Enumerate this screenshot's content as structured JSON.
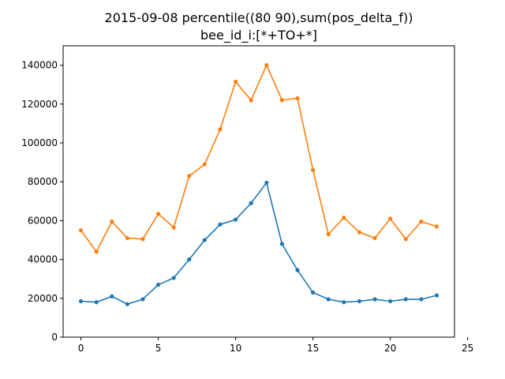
{
  "chart_data": {
    "type": "line",
    "title_lines": [
      "2015-09-08 percentile((80 90),sum(pos_delta_f))",
      "bee_id_i:[*+TO+*]"
    ],
    "xlabel": "",
    "ylabel": "",
    "xlim": [
      -1.15,
      24.15
    ],
    "ylim": [
      0,
      150000
    ],
    "x_ticks": [
      0,
      5,
      10,
      15,
      20,
      25
    ],
    "y_ticks": [
      0,
      20000,
      40000,
      60000,
      80000,
      100000,
      120000,
      140000
    ],
    "grid": false,
    "x": [
      0,
      1,
      2,
      3,
      4,
      5,
      6,
      7,
      8,
      9,
      10,
      11,
      12,
      13,
      14,
      15,
      16,
      17,
      18,
      19,
      20,
      21,
      22,
      23
    ],
    "series": [
      {
        "color": "#1f77b4",
        "values": [
          18500,
          18000,
          21000,
          17000,
          19500,
          27000,
          30500,
          40000,
          50000,
          58000,
          60500,
          69000,
          79500,
          48000,
          34500,
          23000,
          19500,
          18000,
          18500,
          19500,
          18500,
          19500,
          19500,
          21500
        ]
      },
      {
        "color": "#ff7f0e",
        "values": [
          55000,
          44000,
          59500,
          51000,
          50500,
          63500,
          56500,
          83000,
          89000,
          107000,
          131500,
          122000,
          140000,
          122000,
          123000,
          86000,
          53000,
          61500,
          54000,
          51000,
          61000,
          50500,
          59500,
          57000
        ]
      }
    ]
  }
}
